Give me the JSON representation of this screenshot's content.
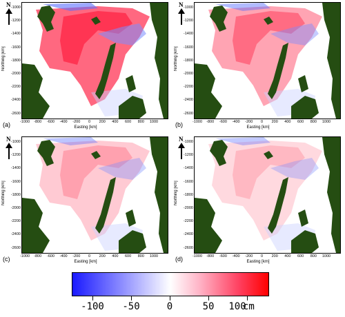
{
  "panels": [
    {
      "label": "(a)",
      "intensity": 1.0
    },
    {
      "label": "(b)",
      "intensity": 0.6
    },
    {
      "label": "(c)",
      "intensity": 0.35
    },
    {
      "label": "(d)",
      "intensity": 0.25
    }
  ],
  "axes": {
    "ylabel": "Northing [km]",
    "xlabel": "Easting [km]",
    "yticks": [
      "-1000",
      "-1200",
      "-1400",
      "-1600",
      "-1800",
      "-2000",
      "-2200",
      "-2400",
      "-2600"
    ],
    "xticks": [
      "-1000",
      "-800",
      "-600",
      "-400",
      "-200",
      "0",
      "200",
      "400",
      "600",
      "800",
      "1000"
    ]
  },
  "north_arrow": {
    "label": "N",
    "icon": "north-arrow-icon"
  },
  "colorbar": {
    "ticks": [
      "-100",
      "-50",
      "0",
      "50",
      "100"
    ],
    "unit": "cm",
    "colors": {
      "negative": "#1a1aff",
      "zero": "#ffffff",
      "positive": "#ff0000"
    }
  },
  "colors": {
    "land": "#254d12",
    "ice_positive": "#ff3355",
    "ice_negative": "#4466ff"
  }
}
